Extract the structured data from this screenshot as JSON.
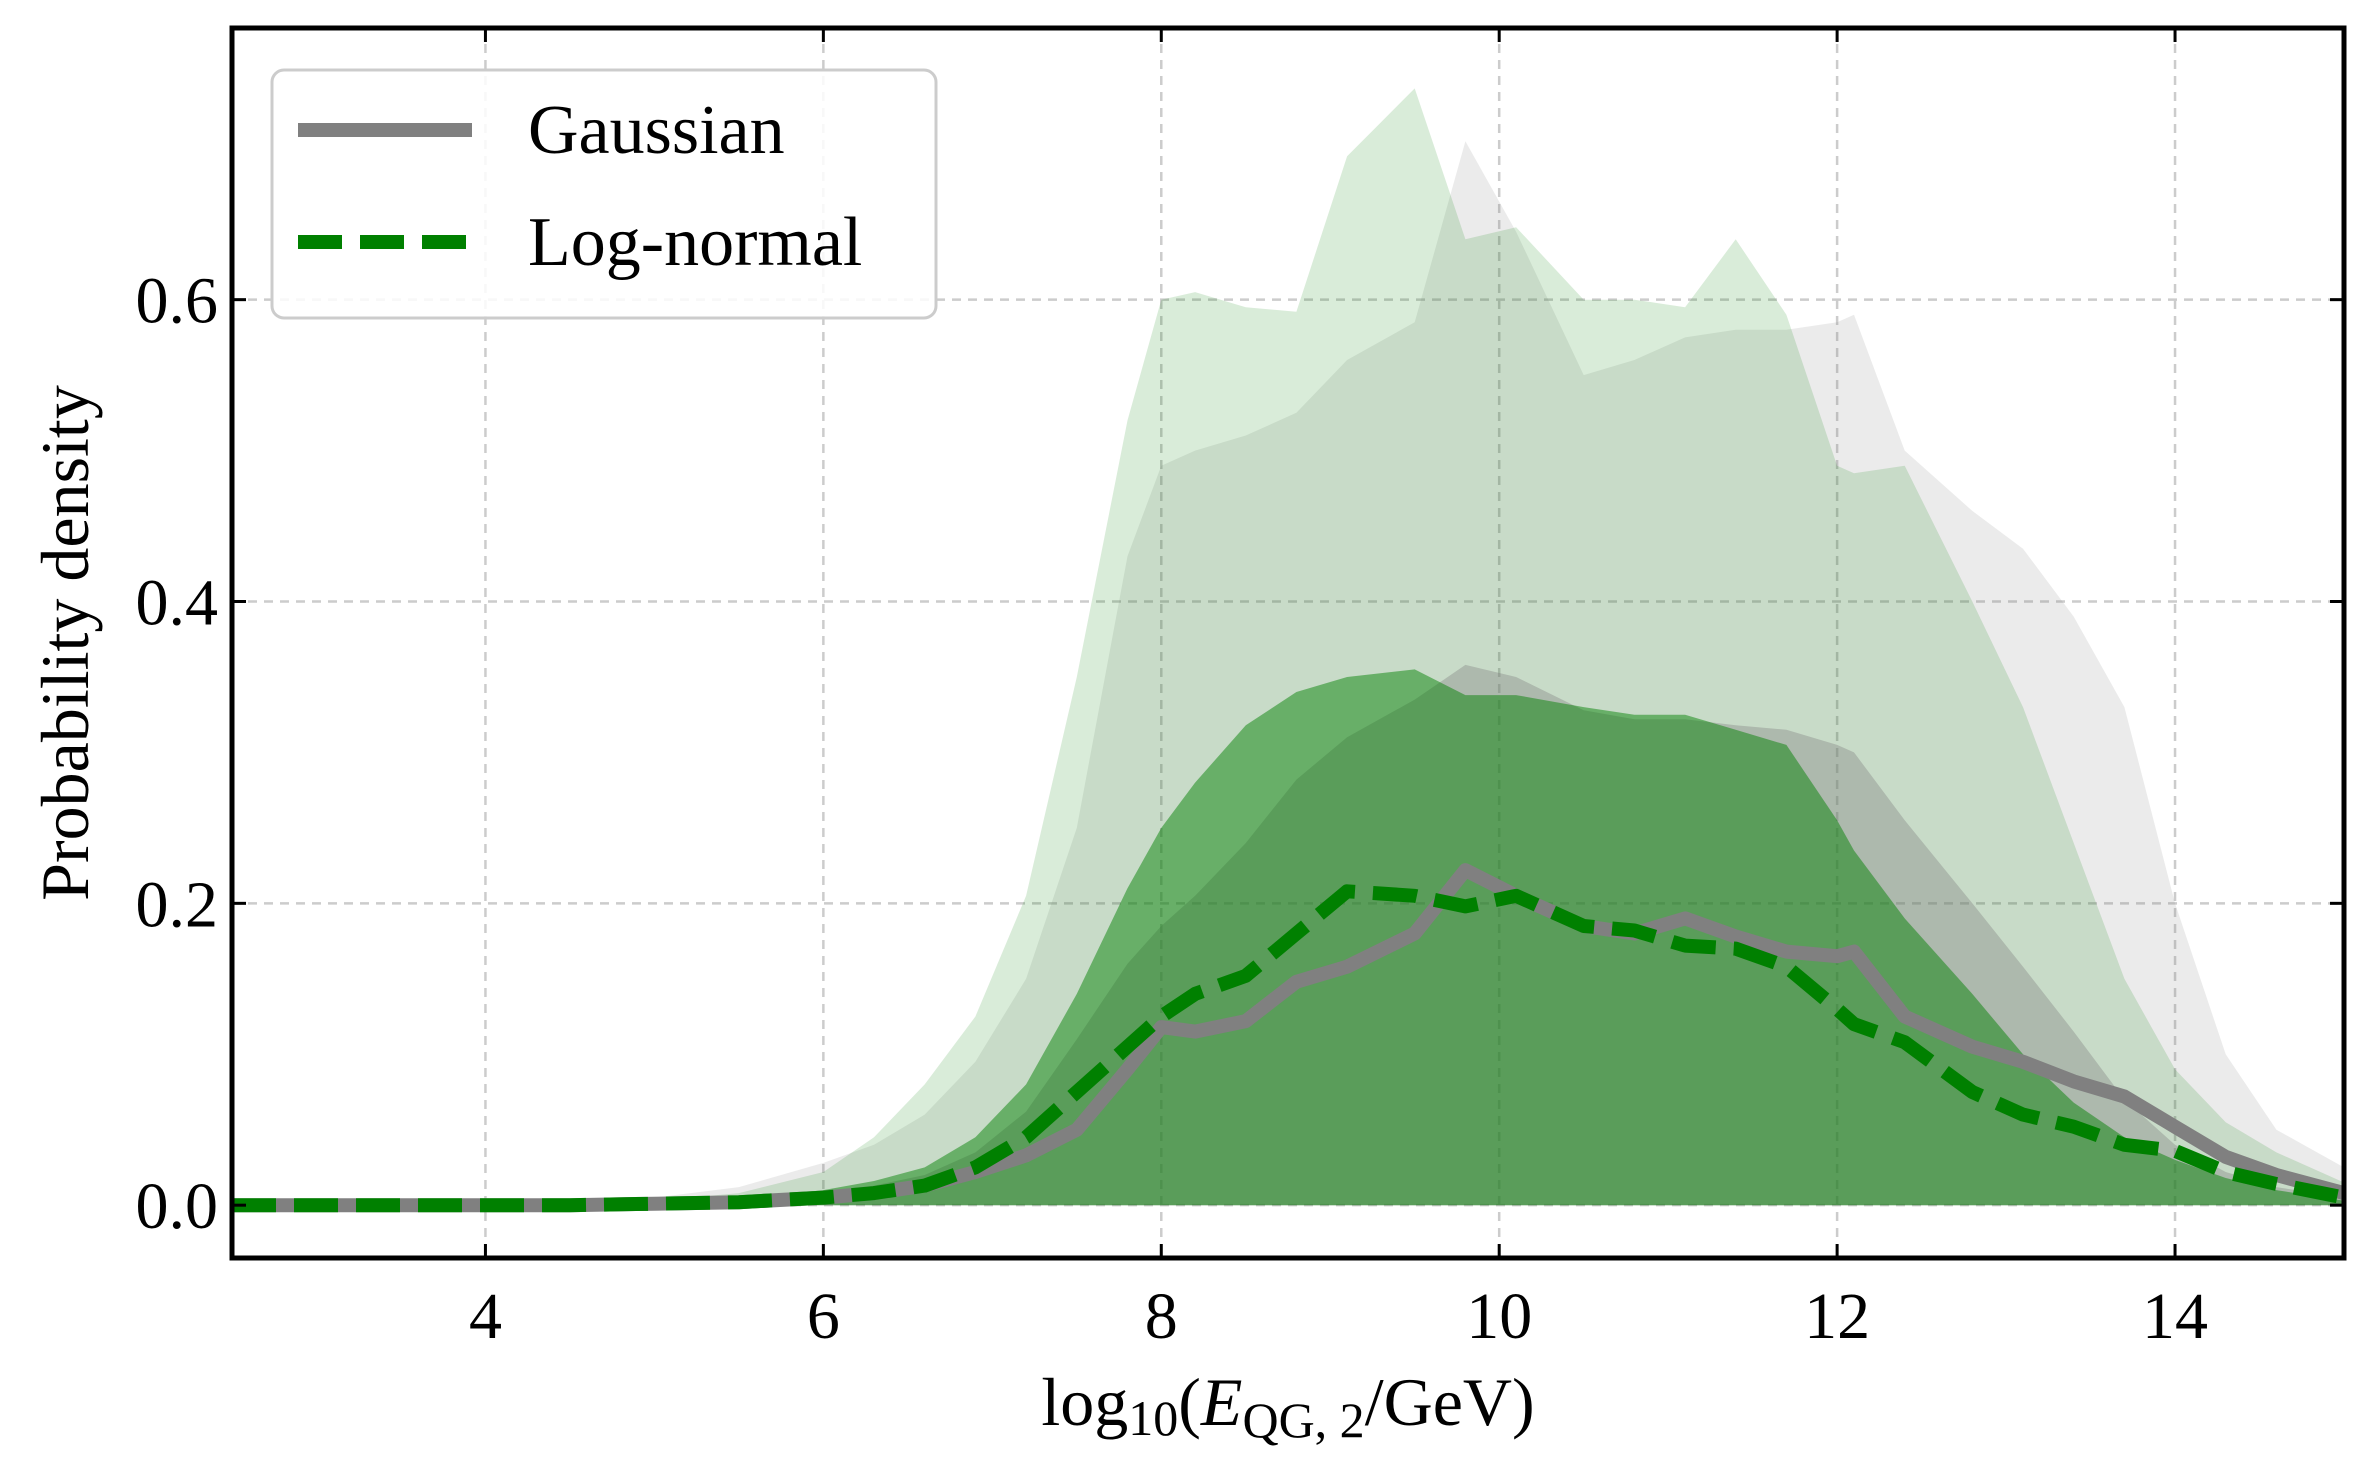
{
  "chart_data": {
    "type": "area",
    "title": "",
    "xlabel": "log10(E_QG,2/GeV)",
    "xlabel_parts": {
      "prefix": "log",
      "prefix_sub": "10",
      "open": "(",
      "var": "E",
      "var_sub": "QG, 2",
      "suffix": "/GeV)"
    },
    "ylabel": "Probability density",
    "xlim": [
      2.5,
      15
    ],
    "ylim": [
      -0.035,
      0.78
    ],
    "xticks": [
      4,
      6,
      8,
      10,
      12,
      14
    ],
    "xtick_labels": [
      "4",
      "6",
      "8",
      "10",
      "12",
      "14"
    ],
    "yticks": [
      0.0,
      0.2,
      0.4,
      0.6
    ],
    "ytick_labels": [
      "0.0",
      "0.2",
      "0.4",
      "0.6"
    ],
    "grid": true,
    "legend_position": "top-left",
    "x": [
      2.5,
      3.0,
      3.5,
      4.0,
      4.5,
      5.0,
      5.5,
      6.0,
      6.3,
      6.6,
      6.9,
      7.2,
      7.5,
      7.8,
      8.0,
      8.2,
      8.5,
      8.8,
      9.1,
      9.5,
      9.8,
      10.1,
      10.5,
      10.8,
      11.1,
      11.4,
      11.7,
      12.0,
      12.1,
      12.4,
      12.8,
      13.1,
      13.4,
      13.7,
      14.0,
      14.3,
      14.6,
      15.0
    ],
    "series": [
      {
        "name": "Gaussian",
        "color": "#808080",
        "band_color": "#808080",
        "median": [
          0,
          0,
          0,
          0,
          0,
          0.001,
          0.002,
          0.005,
          0.008,
          0.013,
          0.022,
          0.033,
          0.05,
          0.09,
          0.118,
          0.115,
          0.122,
          0.148,
          0.158,
          0.18,
          0.222,
          0.205,
          0.185,
          0.18,
          0.19,
          0.178,
          0.168,
          0.165,
          0.168,
          0.125,
          0.105,
          0.095,
          0.082,
          0.072,
          0.052,
          0.032,
          0.02,
          0.008
        ],
        "band68": [
          [
            0,
            0,
            0,
            0,
            0,
            0,
            0,
            0,
            0,
            0,
            0,
            0,
            0,
            0,
            0,
            0,
            0,
            0,
            0,
            0,
            0,
            0,
            0,
            0,
            0,
            0,
            0,
            0,
            0,
            0,
            0,
            0,
            0,
            0,
            0,
            0,
            0,
            0
          ],
          [
            0,
            0,
            0,
            0,
            0,
            0.002,
            0.004,
            0.009,
            0.013,
            0.02,
            0.035,
            0.062,
            0.11,
            0.16,
            0.185,
            0.205,
            0.24,
            0.282,
            0.31,
            0.335,
            0.358,
            0.35,
            0.328,
            0.322,
            0.322,
            0.318,
            0.315,
            0.305,
            0.3,
            0.255,
            0.2,
            0.158,
            0.115,
            0.07,
            0.04,
            0.022,
            0.012,
            0.005
          ]
        ],
        "band95": [
          [
            0,
            0,
            0,
            0,
            0,
            0,
            0,
            0,
            0,
            0,
            0,
            0,
            0,
            0,
            0,
            0,
            0,
            0,
            0,
            0,
            0,
            0,
            0,
            0,
            0,
            0,
            0,
            0,
            0,
            0,
            0,
            0,
            0,
            0,
            0,
            0,
            0,
            0
          ],
          [
            0,
            0,
            0,
            0,
            0.002,
            0.005,
            0.012,
            0.028,
            0.04,
            0.06,
            0.095,
            0.15,
            0.25,
            0.43,
            0.49,
            0.5,
            0.51,
            0.525,
            0.56,
            0.585,
            0.705,
            0.645,
            0.55,
            0.56,
            0.575,
            0.58,
            0.58,
            0.585,
            0.59,
            0.5,
            0.46,
            0.435,
            0.39,
            0.33,
            0.2,
            0.1,
            0.05,
            0.025
          ]
        ]
      },
      {
        "name": "Log-normal",
        "color": "#008000",
        "band_color": "#008000",
        "median": [
          0,
          0,
          0,
          0,
          0,
          0.001,
          0.002,
          0.005,
          0.008,
          0.013,
          0.025,
          0.045,
          0.075,
          0.105,
          0.125,
          0.14,
          0.152,
          0.18,
          0.208,
          0.205,
          0.198,
          0.205,
          0.185,
          0.182,
          0.172,
          0.17,
          0.158,
          0.13,
          0.12,
          0.108,
          0.075,
          0.06,
          0.052,
          0.04,
          0.036,
          0.022,
          0.014,
          0.005
        ],
        "band68": [
          [
            0,
            0,
            0,
            0,
            0,
            0,
            0,
            0,
            0,
            0,
            0,
            0,
            0,
            0,
            0,
            0,
            0,
            0,
            0,
            0,
            0,
            0,
            0,
            0,
            0,
            0,
            0,
            0,
            0,
            0,
            0,
            0,
            0,
            0,
            0,
            0,
            0,
            0
          ],
          [
            0,
            0,
            0,
            0,
            0,
            0.002,
            0.004,
            0.01,
            0.016,
            0.025,
            0.045,
            0.08,
            0.14,
            0.21,
            0.25,
            0.28,
            0.318,
            0.34,
            0.35,
            0.355,
            0.338,
            0.338,
            0.33,
            0.325,
            0.325,
            0.315,
            0.305,
            0.255,
            0.235,
            0.19,
            0.14,
            0.1,
            0.068,
            0.045,
            0.03,
            0.018,
            0.01,
            0.003
          ]
        ],
        "band95": [
          [
            0,
            0,
            0,
            0,
            0,
            0,
            0,
            0,
            0,
            0,
            0,
            0,
            0,
            0,
            0,
            0,
            0,
            0,
            0,
            0,
            0,
            0,
            0,
            0,
            0,
            0,
            0,
            0,
            0,
            0,
            0,
            0,
            0,
            0,
            0,
            0,
            0,
            0
          ],
          [
            0,
            0,
            0,
            0,
            0.001,
            0.003,
            0.008,
            0.022,
            0.045,
            0.08,
            0.125,
            0.205,
            0.35,
            0.52,
            0.6,
            0.605,
            0.595,
            0.592,
            0.695,
            0.74,
            0.64,
            0.648,
            0.6,
            0.6,
            0.595,
            0.64,
            0.59,
            0.49,
            0.485,
            0.49,
            0.4,
            0.33,
            0.24,
            0.15,
            0.09,
            0.055,
            0.035,
            0.015
          ]
        ]
      }
    ]
  }
}
